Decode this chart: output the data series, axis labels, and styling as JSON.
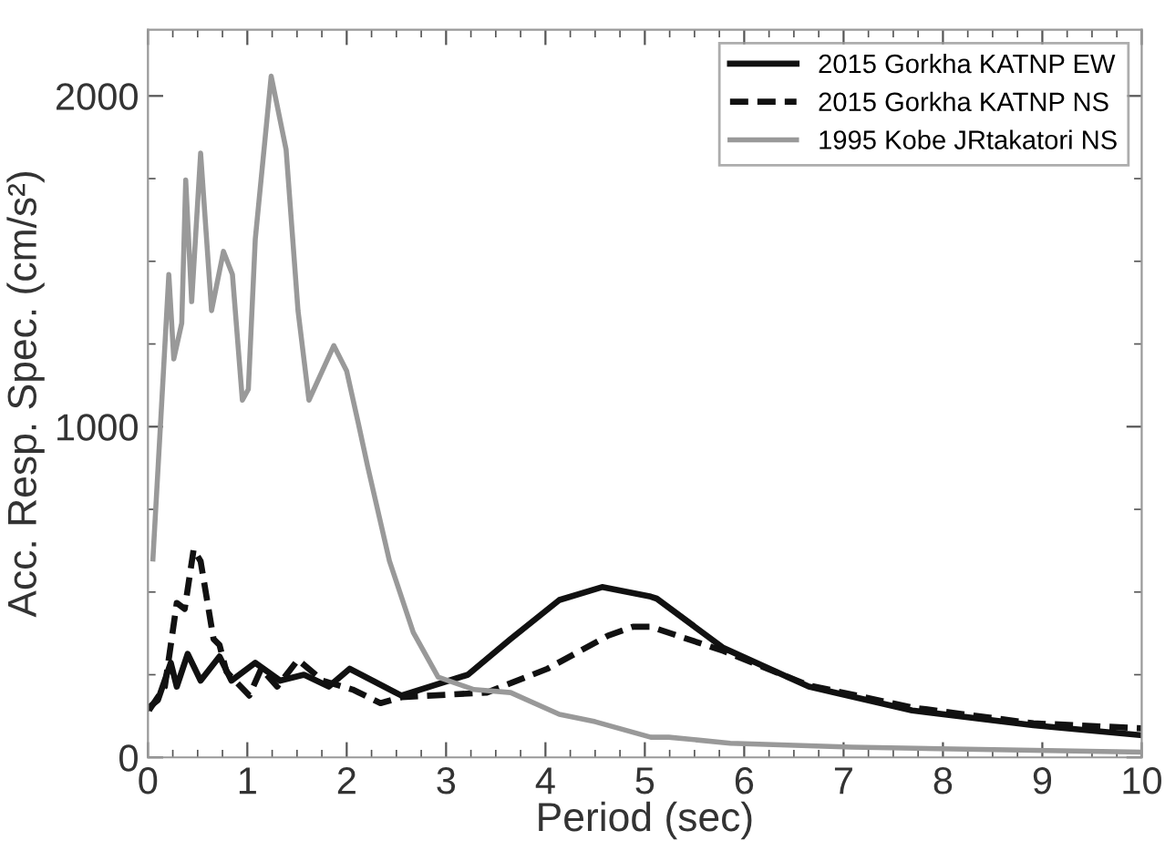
{
  "chart_data": {
    "type": "line",
    "xlabel": "Period (sec)",
    "ylabel": "Acc. Resp. Spec. (cm/s²)",
    "xlim": [
      0,
      10
    ],
    "ylim": [
      0,
      2200
    ],
    "xticks": [
      0,
      1,
      2,
      3,
      4,
      5,
      6,
      7,
      8,
      9,
      10
    ],
    "yticks": [
      0,
      1000,
      2000
    ],
    "grid": false,
    "legend": "top right",
    "marker": "none",
    "series": [
      {
        "name": "2015 Gorkha KATNP EW",
        "color": "#111111",
        "line_style": "solid",
        "x": [
          0.01,
          0.1,
          0.23,
          0.29,
          0.4,
          0.53,
          0.72,
          0.84,
          1.08,
          1.33,
          1.57,
          1.82,
          2.03,
          2.26,
          2.55,
          3.22,
          3.65,
          4.14,
          4.57,
          5.06,
          5.12,
          5.79,
          6.65,
          7.69,
          8.91,
          10.0
        ],
        "values": [
          151,
          173,
          286,
          214,
          313,
          232,
          305,
          232,
          286,
          232,
          250,
          214,
          268,
          232,
          187,
          250,
          358,
          476,
          515,
          486,
          480,
          331,
          214,
          142,
          97,
          67
        ]
      },
      {
        "name": "2015 Gorkha KATNP NS",
        "color": "#111111",
        "line_style": "dashed",
        "x": [
          0.01,
          0.17,
          0.29,
          0.37,
          0.46,
          0.53,
          0.66,
          0.72,
          0.79,
          1.02,
          1.14,
          1.3,
          1.51,
          1.76,
          2.06,
          2.34,
          2.55,
          3.41,
          4.02,
          4.63,
          4.88,
          5.06,
          5.43,
          5.79,
          6.65,
          7.69,
          8.91,
          10.0
        ],
        "values": [
          142,
          214,
          467,
          449,
          629,
          593,
          358,
          340,
          259,
          187,
          268,
          214,
          295,
          232,
          205,
          164,
          182,
          196,
          268,
          368,
          395,
          395,
          358,
          322,
          218,
          151,
          103,
          88
        ]
      },
      {
        "name": "1995 Kobe JRtakatori NS",
        "color": "#999999",
        "line_style": "solid",
        "x": [
          0.05,
          0.13,
          0.21,
          0.26,
          0.34,
          0.38,
          0.44,
          0.53,
          0.64,
          0.76,
          0.85,
          0.95,
          1.01,
          1.08,
          1.24,
          1.39,
          1.51,
          1.62,
          1.87,
          2.0,
          2.12,
          2.21,
          2.43,
          2.67,
          2.92,
          3.28,
          3.65,
          4.14,
          4.5,
          5.06,
          5.24,
          5.86,
          7.08,
          10.0
        ],
        "values": [
          600,
          1027,
          1460,
          1205,
          1313,
          1746,
          1378,
          1827,
          1351,
          1530,
          1460,
          1080,
          1113,
          1567,
          2060,
          1838,
          1351,
          1080,
          1245,
          1168,
          1006,
          881,
          594,
          378,
          243,
          205,
          196,
          130,
          108,
          61,
          61,
          43,
          31,
          16
        ]
      }
    ]
  }
}
